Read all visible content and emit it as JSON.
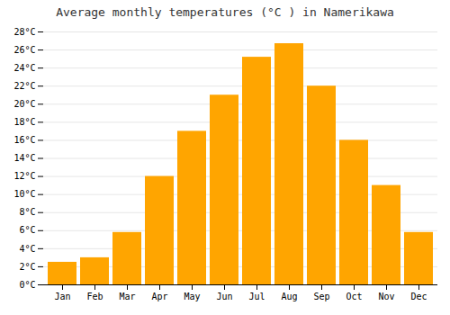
{
  "chart_data": {
    "type": "bar",
    "title": "Average monthly temperatures (°C ) in Namerikawa",
    "categories": [
      "Jan",
      "Feb",
      "Mar",
      "Apr",
      "May",
      "Jun",
      "Jul",
      "Aug",
      "Sep",
      "Oct",
      "Nov",
      "Dec"
    ],
    "values": [
      2.5,
      3.0,
      5.8,
      12.0,
      17.0,
      21.0,
      25.2,
      26.7,
      22.0,
      16.0,
      11.0,
      5.8
    ],
    "color": "#FFA500",
    "ylim": [
      0,
      28
    ],
    "yticks": [
      {
        "value": 0,
        "label": "0°C"
      },
      {
        "value": 2,
        "label": "2°C"
      },
      {
        "value": 4,
        "label": "4°C"
      },
      {
        "value": 6,
        "label": "6°C"
      },
      {
        "value": 8,
        "label": "8°C"
      },
      {
        "value": 10,
        "label": "10°C"
      },
      {
        "value": 12,
        "label": "12°C"
      },
      {
        "value": 14,
        "label": "14°C"
      },
      {
        "value": 16,
        "label": "16°C"
      },
      {
        "value": 18,
        "label": "18°C"
      },
      {
        "value": 20,
        "label": "20°C"
      },
      {
        "value": 22,
        "label": "22°C"
      },
      {
        "value": 24,
        "label": "24°C"
      },
      {
        "value": 26,
        "label": "26°C"
      },
      {
        "value": 28,
        "label": "28°C"
      }
    ],
    "grid": true
  }
}
